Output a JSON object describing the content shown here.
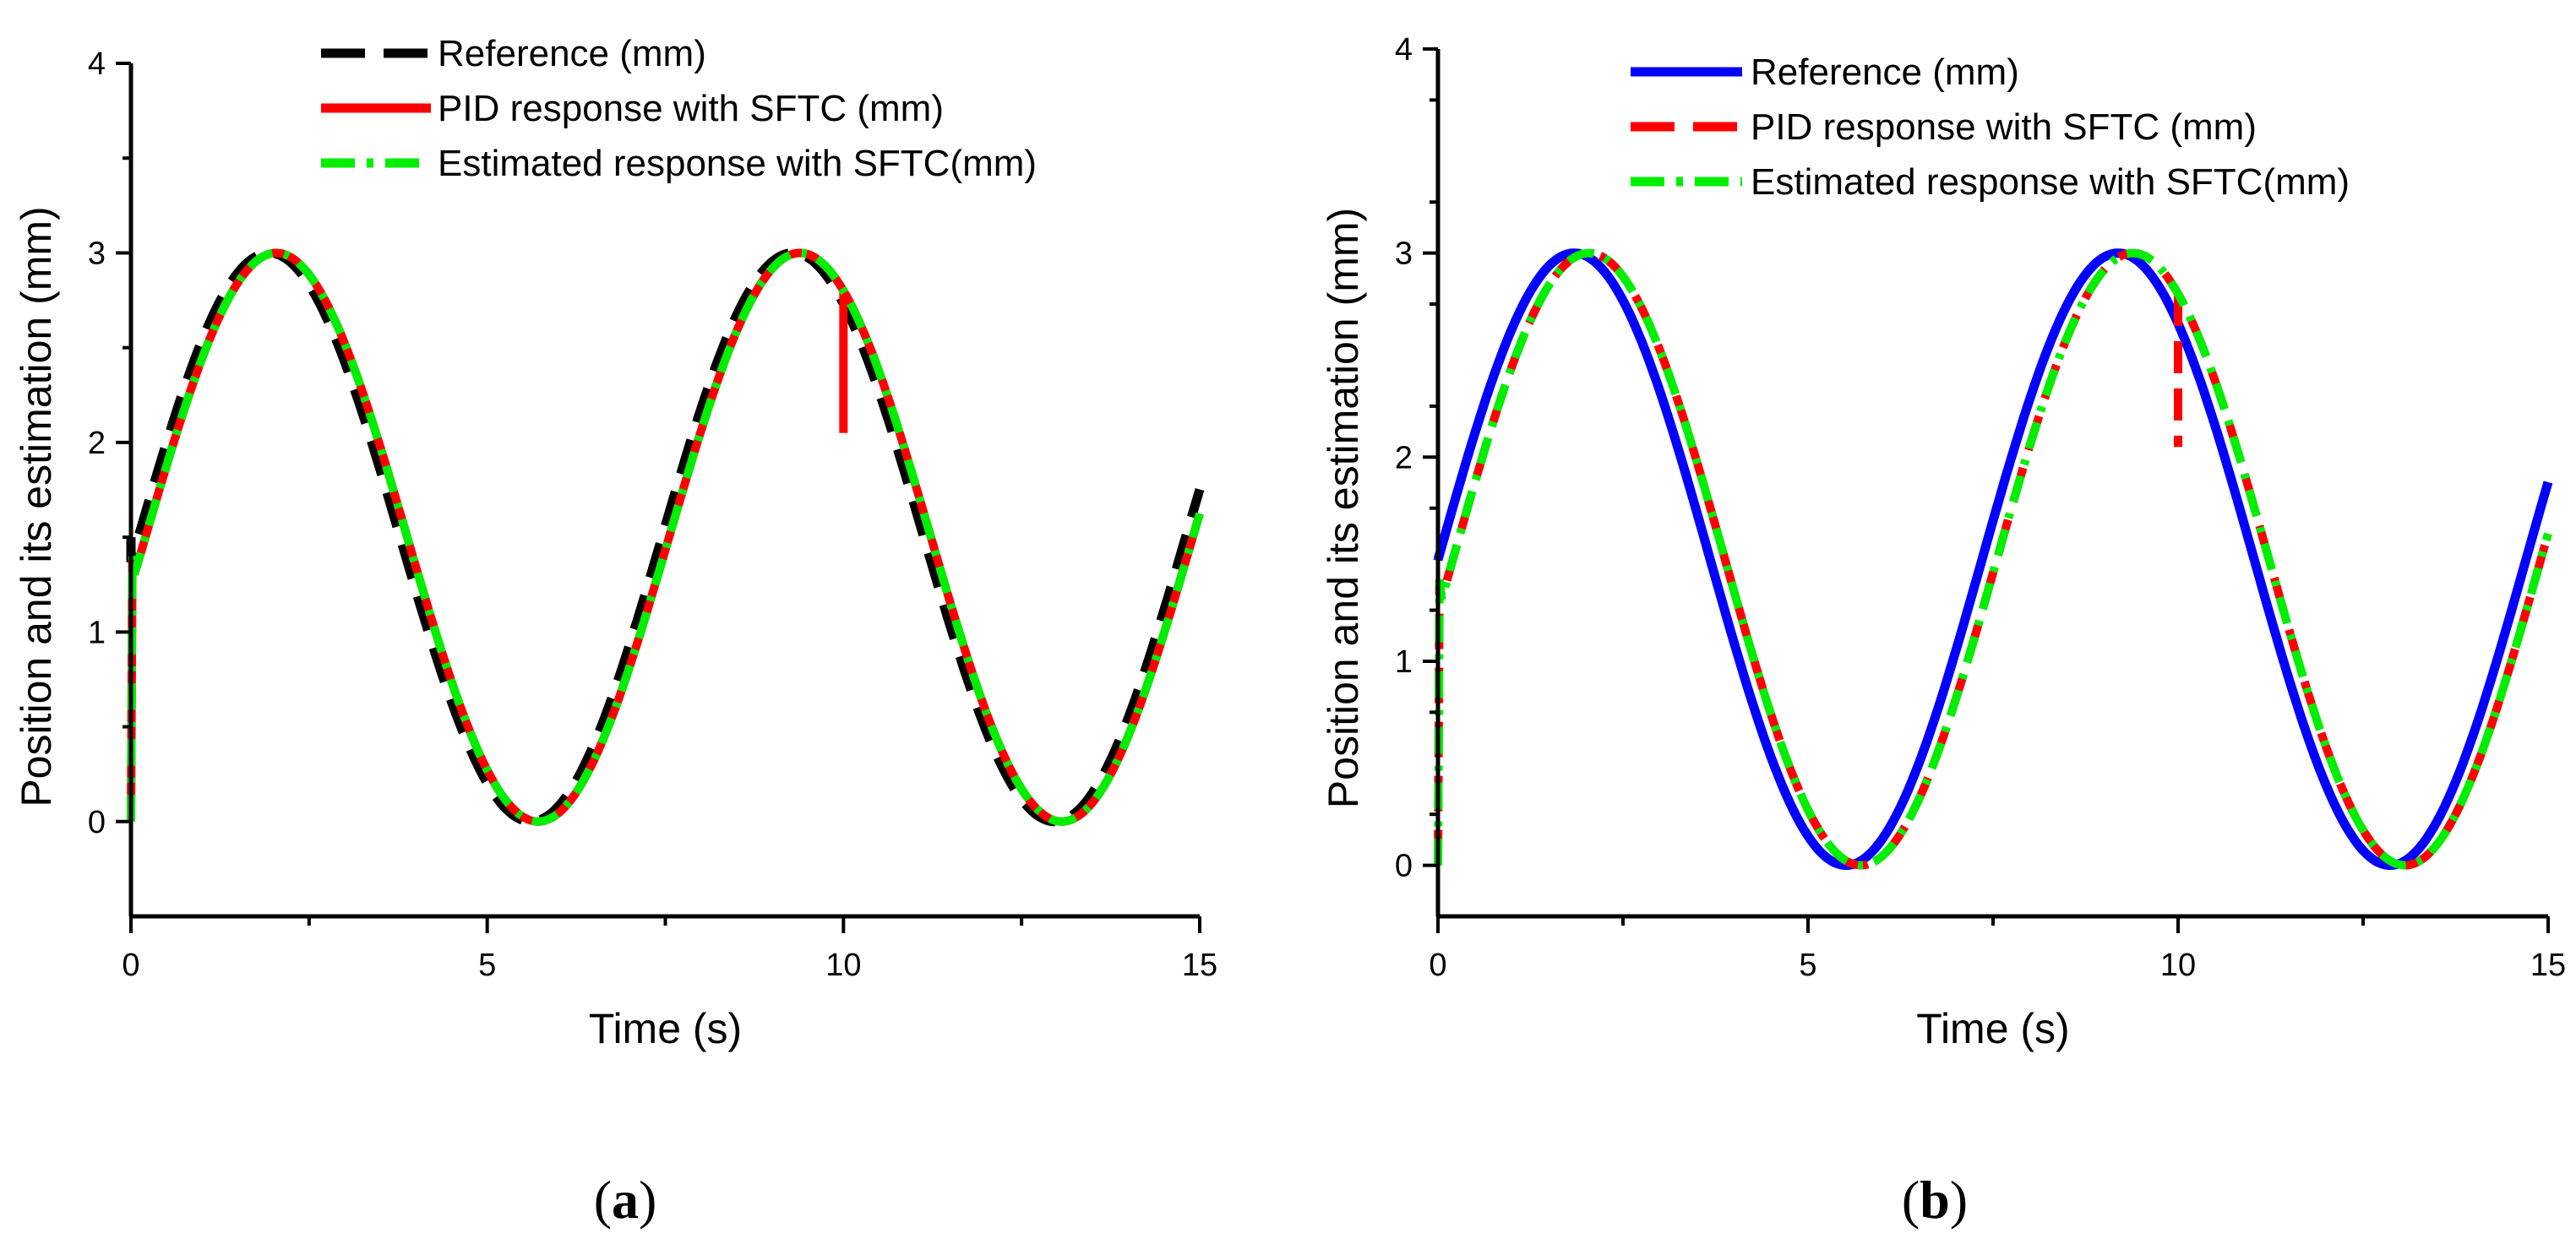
{
  "chart_data": [
    {
      "panel_label": "a",
      "type": "line",
      "xlabel": "Time (s)",
      "ylabel": "Position and its estimation (mm)",
      "xlim": [
        0,
        15
      ],
      "ylim": [
        -0.5,
        4
      ],
      "xticks": [
        "0",
        "5",
        "10",
        "15"
      ],
      "yticks": [
        "0",
        "1",
        "2",
        "3",
        "4"
      ],
      "legend_position": "top-center",
      "series": [
        {
          "name": "Reference (mm)",
          "color": "#000000",
          "style": "dashed",
          "x": [
            0,
            1.94,
            5.63,
            9.3,
            13.0,
            15
          ],
          "y": [
            1.5,
            3.0,
            0.0,
            3.0,
            0.0,
            1.8
          ]
        },
        {
          "name": "PID response with SFTC (mm)",
          "color": "#ff0000",
          "style": "solid",
          "x": [
            0,
            2.04,
            5.72,
            9.4,
            10.0,
            13.1,
            15
          ],
          "y": [
            0,
            3.0,
            0.0,
            3.0,
            2.05,
            0.0,
            1.6
          ]
        },
        {
          "name": "Estimated response with SFTC(mm)",
          "color": "#00ee00",
          "style": "dashdot",
          "x": [
            0,
            2.04,
            5.72,
            9.4,
            13.1,
            15
          ],
          "y": [
            0,
            3.0,
            0.0,
            3.0,
            0.0,
            1.55
          ]
        }
      ]
    },
    {
      "panel_label": "b",
      "type": "line",
      "xlabel": "Time (s)",
      "ylabel": "Position and its estimation (mm)",
      "xlim": [
        0,
        15
      ],
      "ylim": [
        -0.25,
        4
      ],
      "xticks": [
        "0",
        "5",
        "10",
        "15"
      ],
      "yticks": [
        "0",
        "1",
        "2",
        "3",
        "4"
      ],
      "legend_position": "top-center",
      "series": [
        {
          "name": "Reference (mm)",
          "color": "#0000ff",
          "style": "solid",
          "x": [
            0,
            1.84,
            5.53,
            9.2,
            12.9,
            15
          ],
          "y": [
            1.5,
            3.0,
            0.0,
            3.0,
            0.0,
            1.8
          ]
        },
        {
          "name": "PID response with SFTC (mm)",
          "color": "#ff0000",
          "style": "dashed",
          "x": [
            0,
            2.04,
            5.72,
            9.4,
            10.0,
            13.1,
            15
          ],
          "y": [
            0,
            3.0,
            0.0,
            3.0,
            2.05,
            0.0,
            1.6
          ]
        },
        {
          "name": "Estimated response with SFTC(mm)",
          "color": "#00ee00",
          "style": "dashdot",
          "x": [
            0,
            2.04,
            5.72,
            9.4,
            13.1,
            15
          ],
          "y": [
            0,
            3.0,
            0.0,
            3.0,
            0.0,
            1.55
          ]
        }
      ]
    }
  ]
}
